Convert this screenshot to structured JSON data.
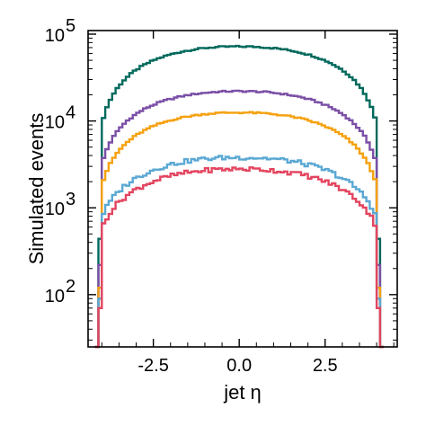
{
  "chart_data": {
    "type": "line",
    "style": "step histogram",
    "xlabel": "jet η",
    "ylabel": "Simulated events",
    "xlim": [
      -4.4,
      4.6
    ],
    "ylim": [
      25,
      110000
    ],
    "yscale": "log",
    "grid": false,
    "legend": "none",
    "x_ticks": [
      {
        "value": -2.5,
        "label": "-2.5"
      },
      {
        "value": 0.0,
        "label": "0.0"
      },
      {
        "value": 2.5,
        "label": "2.5"
      }
    ],
    "y_ticks": [
      {
        "value": 100,
        "base": "10",
        "exp": "2"
      },
      {
        "value": 1000,
        "base": "10",
        "exp": "3"
      },
      {
        "value": 10000,
        "base": "10",
        "exp": "4"
      },
      {
        "value": 100000,
        "base": "10",
        "exp": "5"
      }
    ],
    "eta_range": [
      -4.2,
      4.2
    ],
    "series": [
      {
        "color": "#00695c",
        "edge": 2200,
        "peak": 72000
      },
      {
        "color": "#7b4fa6",
        "edge": 1100,
        "peak": 22000
      },
      {
        "color": "#f5a10f",
        "edge": 600,
        "peak": 12500
      },
      {
        "color": "#5aa8d4",
        "edge": 450,
        "peak": 3800
      },
      {
        "color": "#e3445f",
        "edge": 350,
        "peak": 2800
      }
    ]
  }
}
